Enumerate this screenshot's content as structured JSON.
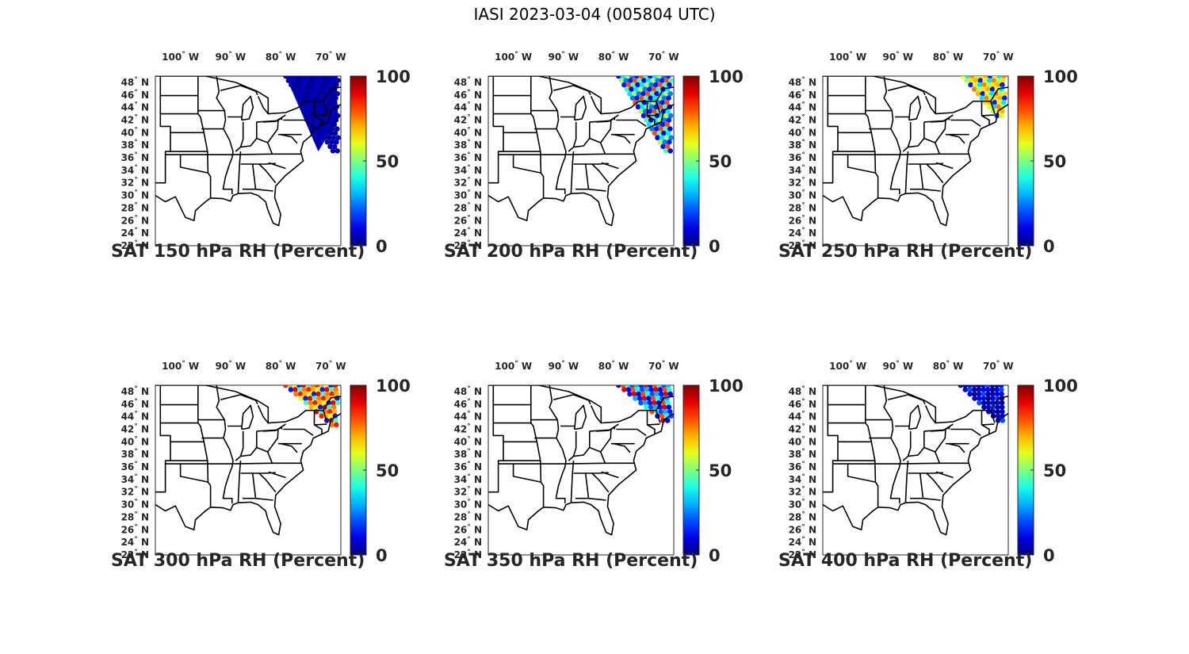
{
  "figure": {
    "title": "IASI 2023-03-04 (005804 UTC)"
  },
  "map_axes": {
    "longitude_ticks": [
      "100",
      "90",
      "80",
      "70"
    ],
    "longitude_hemisphere": "W",
    "latitude_ticks": [
      "48",
      "46",
      "44",
      "42",
      "40",
      "38",
      "36",
      "34",
      "32",
      "30",
      "28",
      "26",
      "24",
      "22"
    ],
    "latitude_hemisphere": "N",
    "degree_symbol": "°",
    "extent": {
      "lon_min": -105,
      "lon_max": -68,
      "lat_min": 22,
      "lat_max": 49
    }
  },
  "colorbar": {
    "colormap": "jet",
    "range": [
      0,
      100
    ],
    "tick_labels": [
      "100",
      "50",
      "0"
    ]
  },
  "panels": [
    {
      "caption": "SAT 150 hPa RH (Percent)",
      "level_hpa": 150,
      "swath": "full swath, nearly all values near 0-15 (dark blue)"
    },
    {
      "caption": "SAT 200 hPa RH (Percent)",
      "level_hpa": 200,
      "swath": "mixed blue/cyan/green with orange-red near coast"
    },
    {
      "caption": "SAT 250 hPa RH (Percent)",
      "level_hpa": 250,
      "swath": "northern swath, yellow-orange values with cyan and blue"
    },
    {
      "caption": "SAT 300 hPa RH (Percent)",
      "level_hpa": 300,
      "swath": "northern swath, orange-red and yellow with blue edges"
    },
    {
      "caption": "SAT 350 hPa RH (Percent)",
      "level_hpa": 350,
      "swath": "northern swath, blue/cyan with orange patches"
    },
    {
      "caption": "SAT 400 hPa RH (Percent)",
      "level_hpa": 400,
      "swath": "northern swath, mostly dark blue"
    }
  ],
  "colors": {
    "map_lines": "#000000",
    "text": "#262626"
  }
}
